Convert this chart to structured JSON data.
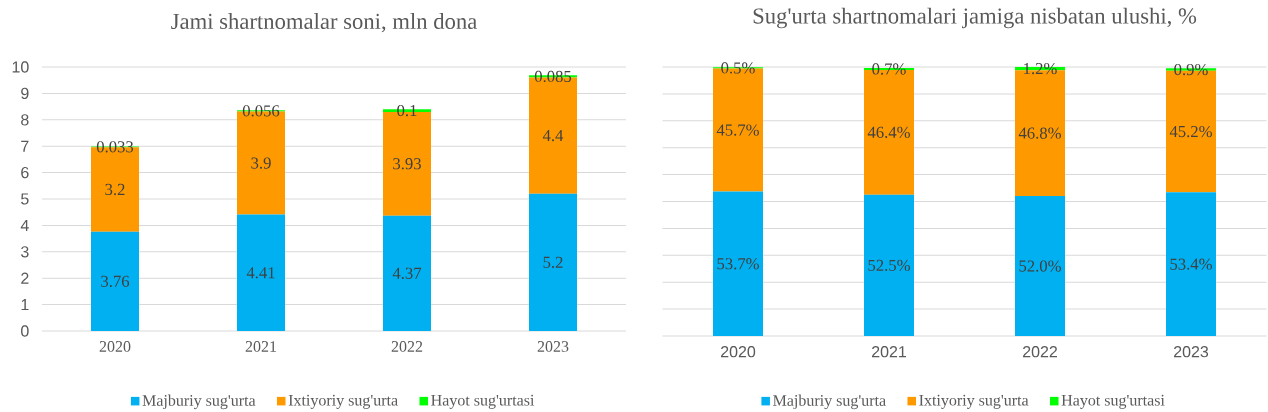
{
  "chart_data": [
    {
      "type": "bar",
      "title": "Jami shartnomalar soni, mln dona",
      "categories": [
        "2020",
        "2021",
        "2022",
        "2023"
      ],
      "stacked": true,
      "series": [
        {
          "name": "Majburiy sug'urta",
          "color": "#00b0f0",
          "values": [
            3.76,
            4.41,
            4.37,
            5.2
          ]
        },
        {
          "name": "Ixtiyoriy sug'urta",
          "color": "#ff9900",
          "values": [
            3.2,
            3.9,
            3.93,
            4.4
          ]
        },
        {
          "name": "Hayot sug'urtasi",
          "color": "#00ff00",
          "values": [
            0.033,
            0.056,
            0.1,
            0.085
          ]
        }
      ],
      "ylim": [
        0,
        10
      ],
      "yticks": [
        0,
        1,
        2,
        3,
        4,
        5,
        6,
        7,
        8,
        9,
        10
      ],
      "grid": "y",
      "legend": "bottom",
      "data_labels": true
    },
    {
      "type": "bar",
      "title": "Sug'urta shartnomalari jamiga nisbatan ulushi, %",
      "categories": [
        "2020",
        "2021",
        "2022",
        "2023"
      ],
      "stacked": true,
      "series": [
        {
          "name": "Majburiy sug'urta",
          "color": "#00b0f0",
          "values": [
            53.7,
            52.5,
            52.0,
            53.4
          ],
          "value_labels": [
            "53.7%",
            "52.5%",
            "52.0%",
            "53.4%"
          ]
        },
        {
          "name": "Ixtiyoriy sug'urta",
          "color": "#ff9900",
          "values": [
            45.7,
            46.4,
            46.8,
            45.2
          ],
          "value_labels": [
            "45.7%",
            "46.4%",
            "46.8%",
            "45.2%"
          ]
        },
        {
          "name": "Hayot sug'urtasi",
          "color": "#00ff00",
          "values": [
            0.5,
            0.7,
            1.2,
            0.9
          ],
          "value_labels": [
            "0.5%",
            "0.7%",
            "1.2%",
            "0.9%"
          ]
        }
      ],
      "ylim": [
        0,
        100
      ],
      "yticks": [
        {
          "value": 0,
          "label": null
        },
        {
          "value": 10,
          "label": null
        },
        {
          "value": 20,
          "label": null
        },
        {
          "value": 30,
          "label": null
        },
        {
          "value": 40,
          "label": null
        },
        {
          "value": 50,
          "label": null
        },
        {
          "value": 60,
          "label": null
        },
        {
          "value": 70,
          "label": null
        },
        {
          "value": 80,
          "label": null
        },
        {
          "value": 90,
          "label": null
        },
        {
          "value": 100,
          "label": null
        }
      ],
      "tick_labels": "x",
      "grid": "y",
      "legend": "bottom"
    }
  ]
}
